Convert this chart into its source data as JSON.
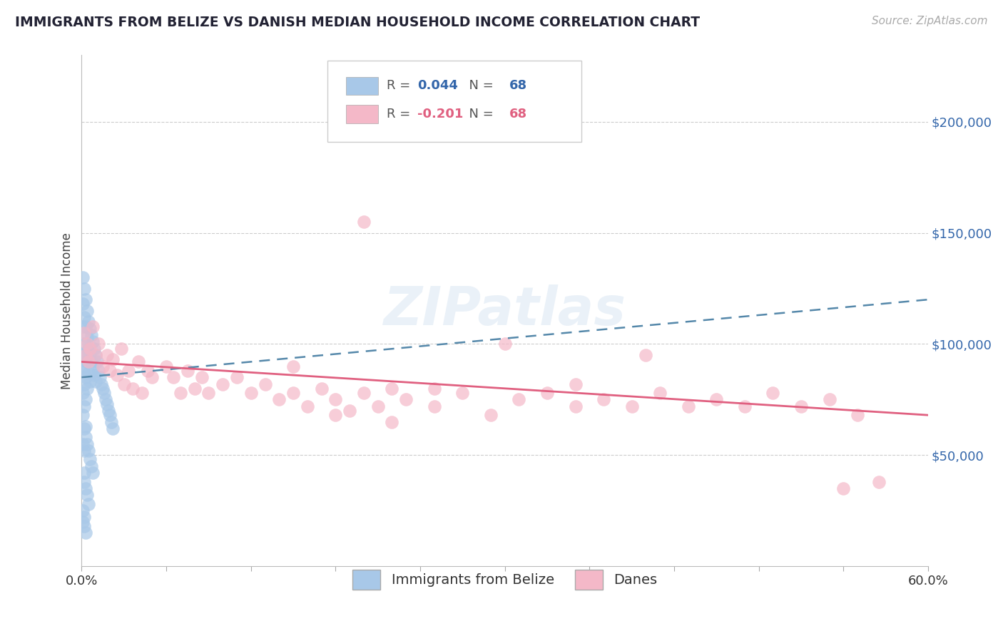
{
  "title": "IMMIGRANTS FROM BELIZE VS DANISH MEDIAN HOUSEHOLD INCOME CORRELATION CHART",
  "source": "Source: ZipAtlas.com",
  "ylabel": "Median Household Income",
  "xlim": [
    0.0,
    0.6
  ],
  "ylim": [
    0,
    230000
  ],
  "yticks": [
    50000,
    100000,
    150000,
    200000
  ],
  "ytick_labels": [
    "$50,000",
    "$100,000",
    "$150,000",
    "$200,000"
  ],
  "xticks": [
    0.0,
    0.06,
    0.12,
    0.18,
    0.24,
    0.3,
    0.36,
    0.42,
    0.48,
    0.54,
    0.6
  ],
  "blue_color": "#a8c8e8",
  "pink_color": "#f4b8c8",
  "blue_line_color": "#5588aa",
  "pink_line_color": "#e06080",
  "R_blue": 0.044,
  "N_blue": 68,
  "R_pink": -0.201,
  "N_pink": 68,
  "legend_label_blue": "Immigrants from Belize",
  "legend_label_pink": "Danes",
  "watermark": "ZIPatlas",
  "title_color": "#222233",
  "grid_color": "#cccccc",
  "ytick_color": "#3366aa",
  "blue_x": [
    0.001,
    0.001,
    0.001,
    0.001,
    0.001,
    0.001,
    0.001,
    0.001,
    0.002,
    0.002,
    0.002,
    0.002,
    0.002,
    0.002,
    0.002,
    0.002,
    0.002,
    0.003,
    0.003,
    0.003,
    0.003,
    0.003,
    0.003,
    0.004,
    0.004,
    0.004,
    0.004,
    0.005,
    0.005,
    0.005,
    0.006,
    0.006,
    0.006,
    0.007,
    0.007,
    0.008,
    0.008,
    0.009,
    0.009,
    0.01,
    0.01,
    0.011,
    0.012,
    0.013,
    0.014,
    0.015,
    0.016,
    0.017,
    0.018,
    0.019,
    0.02,
    0.021,
    0.022,
    0.003,
    0.004,
    0.005,
    0.006,
    0.007,
    0.008,
    0.002,
    0.003,
    0.004,
    0.005,
    0.001,
    0.002,
    0.001,
    0.002,
    0.003
  ],
  "blue_y": [
    130000,
    118000,
    108000,
    95000,
    88000,
    78000,
    68000,
    55000,
    125000,
    112000,
    100000,
    90000,
    82000,
    72000,
    62000,
    52000,
    42000,
    120000,
    108000,
    96000,
    85000,
    75000,
    63000,
    115000,
    103000,
    92000,
    80000,
    110000,
    98000,
    87000,
    107000,
    95000,
    83000,
    104000,
    92000,
    101000,
    89000,
    98000,
    86000,
    95000,
    83000,
    92000,
    88000,
    85000,
    82000,
    80000,
    78000,
    75000,
    73000,
    70000,
    68000,
    65000,
    62000,
    58000,
    55000,
    52000,
    48000,
    45000,
    42000,
    38000,
    35000,
    32000,
    28000,
    25000,
    22000,
    20000,
    18000,
    15000
  ],
  "pink_x": [
    0.002,
    0.003,
    0.004,
    0.005,
    0.006,
    0.008,
    0.01,
    0.012,
    0.015,
    0.018,
    0.02,
    0.022,
    0.025,
    0.028,
    0.03,
    0.033,
    0.036,
    0.04,
    0.043,
    0.047,
    0.05,
    0.06,
    0.065,
    0.07,
    0.075,
    0.08,
    0.085,
    0.09,
    0.1,
    0.11,
    0.12,
    0.13,
    0.14,
    0.15,
    0.16,
    0.17,
    0.18,
    0.19,
    0.2,
    0.21,
    0.22,
    0.23,
    0.25,
    0.27,
    0.29,
    0.31,
    0.33,
    0.35,
    0.37,
    0.39,
    0.41,
    0.43,
    0.45,
    0.47,
    0.49,
    0.51,
    0.53,
    0.55,
    0.565,
    0.2,
    0.3,
    0.35,
    0.4,
    0.15,
    0.25,
    0.18,
    0.22,
    0.54
  ],
  "pink_y": [
    105000,
    95000,
    100000,
    92000,
    98000,
    108000,
    95000,
    100000,
    90000,
    95000,
    88000,
    93000,
    86000,
    98000,
    82000,
    88000,
    80000,
    92000,
    78000,
    88000,
    85000,
    90000,
    85000,
    78000,
    88000,
    80000,
    85000,
    78000,
    82000,
    85000,
    78000,
    82000,
    75000,
    78000,
    72000,
    80000,
    75000,
    70000,
    78000,
    72000,
    80000,
    75000,
    72000,
    78000,
    68000,
    75000,
    78000,
    72000,
    75000,
    72000,
    78000,
    72000,
    75000,
    72000,
    78000,
    72000,
    75000,
    68000,
    38000,
    155000,
    100000,
    82000,
    95000,
    90000,
    80000,
    68000,
    65000,
    35000
  ],
  "blue_trendline": [
    85000,
    120000
  ],
  "pink_trendline": [
    92000,
    68000
  ]
}
